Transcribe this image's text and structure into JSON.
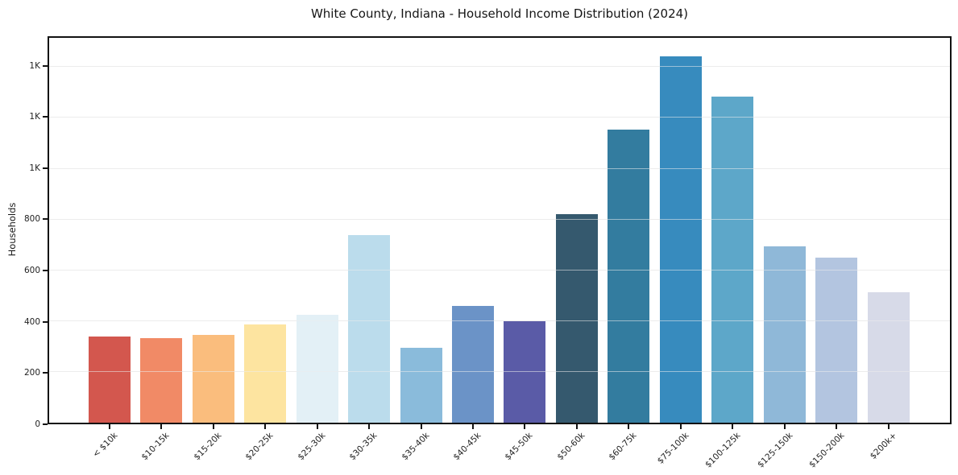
{
  "chart_data": {
    "type": "bar",
    "title": "White County, Indiana - Household Income Distribution (2024)",
    "xlabel": "",
    "ylabel": "Households",
    "categories": [
      "< $10k",
      "$10-15k",
      "$15-20k",
      "$20-25k",
      "$25-30k",
      "$30-35k",
      "$35-40k",
      "$40-45k",
      "$45-50k",
      "$50-60k",
      "$60-75k",
      "$75-100k",
      "$100-125k",
      "$125-150k",
      "$150-200k",
      "$200k+"
    ],
    "values": [
      340,
      334,
      344,
      388,
      425,
      737,
      295,
      461,
      398,
      821,
      1154,
      1442,
      1283,
      693,
      651,
      515
    ],
    "bar_colors": [
      "#d3574e",
      "#f18a66",
      "#fabd7d",
      "#fde4a0",
      "#e3f0f6",
      "#bbdcec",
      "#8abbdb",
      "#6b93c7",
      "#5a5ba7",
      "#35596e",
      "#337c9f",
      "#378bbe",
      "#5da7c9",
      "#8fb8d8",
      "#b3c5e0",
      "#d7dae8"
    ],
    "ylim": [
      0,
      1515
    ],
    "yticks": [
      0,
      200,
      400,
      600,
      800,
      1000,
      1200,
      1400
    ],
    "ytick_labels": [
      "0",
      "200",
      "400",
      "600",
      "800",
      "1K",
      "1K",
      "1K"
    ],
    "grid": "horizontal",
    "legend": "none",
    "colors": {
      "background": "#ffffff",
      "spine": "#121212",
      "gridline": "#ececec",
      "text": "#222222"
    }
  }
}
